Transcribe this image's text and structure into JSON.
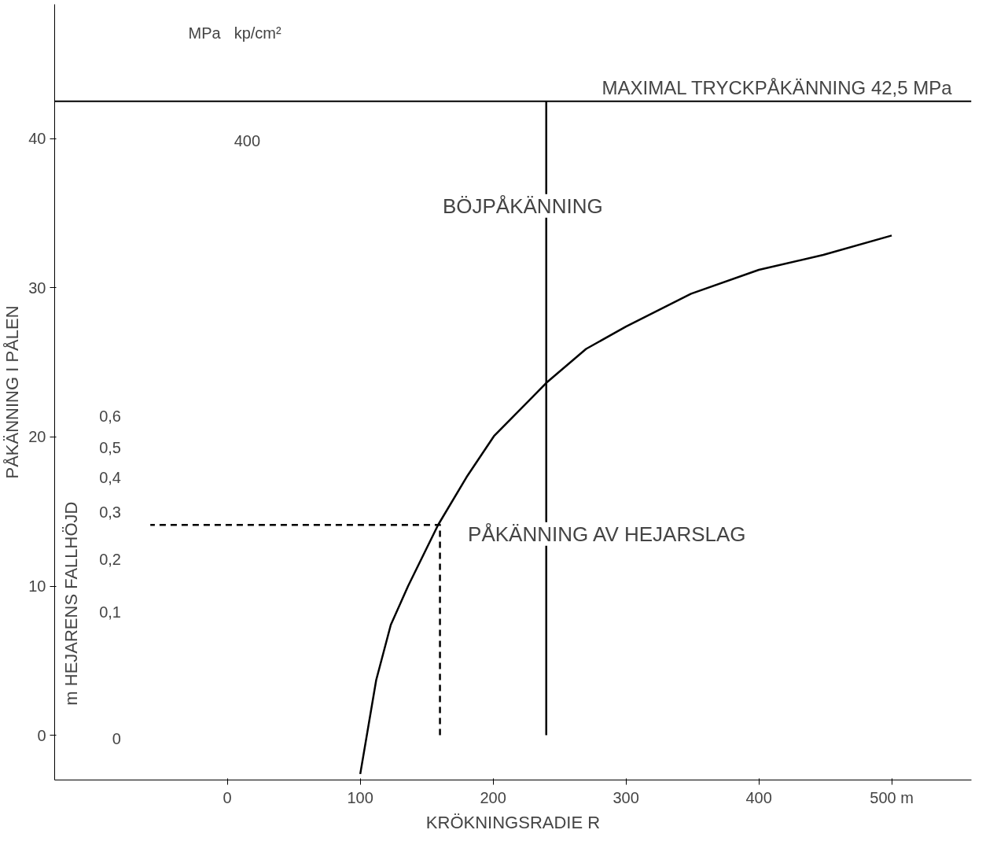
{
  "chart_data": {
    "type": "line",
    "xlabel": "KRÖKNINGSRADIE R",
    "ylabel": "PÅKÄNNING I PÅLEN",
    "annotations": [
      "MPa",
      "kp/cm²",
      "400",
      "BÖJPÅKÄNNING",
      "PÅKÄNNING AV HEJARSLAG",
      "m   HEJARENS FALLHÖJD",
      "0",
      "0,1",
      "0,2",
      "0,3",
      "0,4",
      "0,5",
      "0,6"
    ],
    "xlim": [
      -130,
      560
    ],
    "xticks": [
      0,
      100,
      200,
      300,
      400,
      {
        "value": 500,
        "label": "500 m"
      }
    ],
    "ylim": [
      -3,
      49
    ],
    "yticks": [
      0,
      10,
      20,
      30,
      40
    ],
    "ref_lines": [
      {
        "axis": "y",
        "value": 42.5,
        "label": "MAXIMAL TRYCKPÅKÄNNING  42,5 MPa",
        "color": "#000000"
      }
    ],
    "series": [
      {
        "color": "#000000",
        "x": [
          100,
          112,
          123,
          136,
          158.6,
          180.7,
          200.6,
          241,
          270,
          300,
          349,
          400,
          448.5,
          500
        ],
        "values": [
          -2.6,
          3.7,
          7.4,
          10,
          14.1,
          17.4,
          20.05,
          23.7,
          25.9,
          27.4,
          29.6,
          31.2,
          32.2,
          33.5
        ]
      },
      {
        "color": "#000000",
        "line_style": "dashed",
        "x": [
          160,
          160,
          -58
        ],
        "values": [
          0,
          14.1,
          14.1
        ]
      },
      {
        "color": "#000000",
        "x": [
          240,
          240
        ],
        "values": [
          0,
          42.5
        ]
      }
    ],
    "grid": false
  }
}
